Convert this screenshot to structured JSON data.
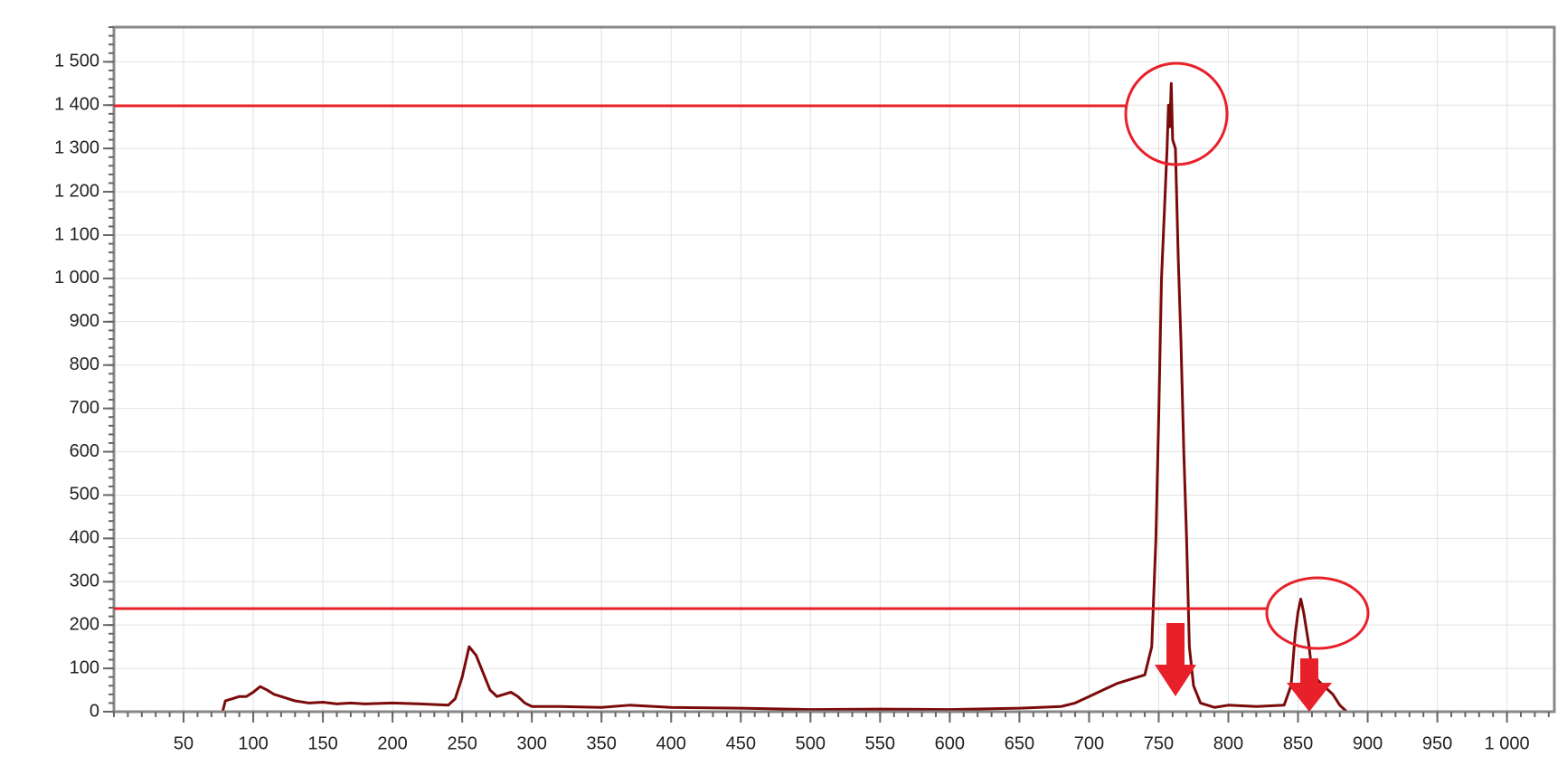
{
  "chart_data": {
    "type": "line",
    "x": [
      0,
      78,
      80,
      85,
      90,
      95,
      100,
      105,
      110,
      115,
      120,
      130,
      140,
      150,
      160,
      170,
      180,
      200,
      220,
      240,
      245,
      250,
      255,
      260,
      265,
      270,
      275,
      280,
      285,
      290,
      295,
      300,
      320,
      350,
      370,
      400,
      450,
      500,
      550,
      600,
      650,
      680,
      690,
      700,
      710,
      720,
      730,
      740,
      745,
      748,
      750,
      752,
      754,
      756,
      757,
      758,
      759,
      760,
      762,
      764,
      766,
      768,
      770,
      772,
      775,
      780,
      790,
      800,
      820,
      840,
      845,
      848,
      850,
      852,
      854,
      856,
      858,
      860,
      865,
      870,
      875,
      880,
      885,
      1034
    ],
    "series": [
      {
        "color": "#7b0a0a",
        "values": [
          0,
          0,
          25,
          30,
          35,
          35,
          45,
          58,
          50,
          40,
          35,
          25,
          20,
          22,
          18,
          20,
          18,
          20,
          18,
          15,
          30,
          80,
          150,
          130,
          90,
          50,
          35,
          40,
          45,
          35,
          20,
          12,
          12,
          10,
          15,
          10,
          8,
          5,
          6,
          5,
          8,
          12,
          20,
          35,
          50,
          65,
          75,
          85,
          150,
          400,
          680,
          1000,
          1150,
          1300,
          1400,
          1350,
          1450,
          1320,
          1300,
          1050,
          850,
          600,
          400,
          150,
          60,
          20,
          10,
          15,
          12,
          15,
          60,
          180,
          230,
          260,
          230,
          190,
          150,
          90,
          70,
          55,
          40,
          15,
          0,
          0
        ]
      }
    ],
    "xlim": [
      0,
      1034
    ],
    "ylim": [
      0,
      1580
    ],
    "xticks": [
      50,
      100,
      150,
      200,
      250,
      300,
      350,
      400,
      450,
      500,
      550,
      600,
      650,
      700,
      750,
      800,
      850,
      900,
      950,
      {
        "value": 1000,
        "label": "1 000"
      }
    ],
    "yticks": [
      0,
      100,
      200,
      300,
      400,
      500,
      600,
      700,
      800,
      900,
      {
        "value": 1000,
        "label": "1 000"
      },
      {
        "value": 1100,
        "label": "1 100"
      },
      {
        "value": 1200,
        "label": "1 200"
      },
      {
        "value": 1300,
        "label": "1 300"
      },
      {
        "value": 1400,
        "label": "1 400"
      },
      {
        "value": 1500,
        "label": "1 500"
      }
    ],
    "grid": true
  }
}
